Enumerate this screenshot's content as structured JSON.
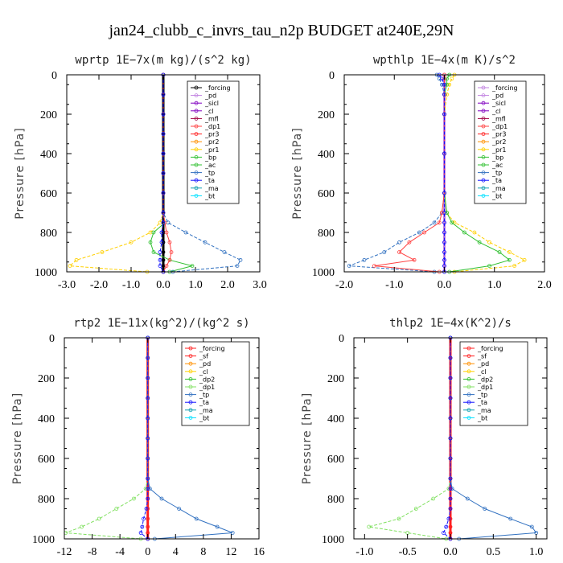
{
  "figure_title": "jan24_clubb_c_invrs_tau_n2p  BUDGET at240E,29N",
  "chart_data": [
    {
      "type": "line",
      "title": "wprtp   1E−7x(m kg)/(s^2 kg)",
      "ylabel": "Pressure [hPa]",
      "xlim": [
        -3.0,
        3.0
      ],
      "ylim": [
        1000,
        0
      ],
      "xticks": [
        -3.0,
        -2.0,
        -1.0,
        0.0,
        1.0,
        2.0,
        3.0
      ],
      "xtick_labels": [
        "-3.0",
        "-2.0",
        "-1.0",
        "0.0",
        "1.0",
        "2.0",
        "3.0"
      ],
      "yticks": [
        0,
        200,
        400,
        600,
        800,
        1000
      ],
      "ytick_labels": [
        "0",
        "200",
        "400",
        "600",
        "800",
        "1000"
      ],
      "legend_position": "top-right",
      "legend": [
        "_forcing",
        "_pd",
        "_sicl",
        "_cl",
        "_mfl",
        "_dp1",
        "_pr3",
        "_pr2",
        "_pr1",
        "_bp",
        "_ac",
        "_tp",
        "_ta",
        "_ma",
        "_bt"
      ],
      "colors": [
        "#000000",
        "#c080e0",
        "#8000c0",
        "#8000c0",
        "#a00040",
        "#ff4040",
        "#ff2020",
        "#ff9000",
        "#ffd000",
        "#30c030",
        "#30c030",
        "#3070c0",
        "#1010ff",
        "#10a0b0",
        "#00e0ff"
      ],
      "pressure": [
        0,
        100,
        200,
        300,
        400,
        500,
        600,
        700,
        750,
        800,
        850,
        900,
        940,
        970,
        1000
      ],
      "series": [
        {
          "name": "_forcing",
          "values": [
            0,
            0,
            0,
            0,
            0,
            0,
            0,
            0,
            0,
            0,
            0,
            0,
            0,
            0,
            0
          ]
        },
        {
          "name": "_pr1",
          "values": [
            0,
            0,
            0,
            0,
            0,
            0,
            0,
            0,
            -0.1,
            -0.4,
            -1.0,
            -1.9,
            -2.7,
            -2.9,
            -0.5
          ]
        },
        {
          "name": "_ac",
          "values": [
            0,
            0,
            0,
            0,
            0,
            0,
            0,
            0,
            0.05,
            -0.3,
            -0.4,
            -0.3,
            0.2,
            0.9,
            0.2
          ]
        },
        {
          "name": "_tp",
          "values": [
            0,
            0,
            0,
            0,
            0,
            0,
            0,
            0,
            0.15,
            0.7,
            1.3,
            1.9,
            2.4,
            2.3,
            0.3
          ]
        },
        {
          "name": "_dp1",
          "values": [
            0,
            0,
            0,
            0,
            0,
            0,
            0,
            0,
            0.05,
            0.1,
            0.2,
            0.25,
            0.2,
            0.1,
            0
          ]
        },
        {
          "name": "_ta",
          "values": [
            0,
            0,
            0,
            0,
            0,
            0,
            0,
            0,
            0,
            -0.05,
            -0.05,
            -0.1,
            -0.1,
            -0.1,
            0
          ]
        }
      ]
    },
    {
      "type": "line",
      "title": "wpthlp   1E−4x(m K)/s^2",
      "ylabel": "Pressure [hPa]",
      "xlim": [
        -2.0,
        2.0
      ],
      "ylim": [
        1000,
        0
      ],
      "xticks": [
        -2.0,
        -1.0,
        0.0,
        1.0,
        2.0
      ],
      "xtick_labels": [
        "-2.0",
        "-1.0",
        "0.0",
        "1.0",
        "2.0"
      ],
      "yticks": [
        0,
        200,
        400,
        600,
        800,
        1000
      ],
      "ytick_labels": [
        "0",
        "200",
        "400",
        "600",
        "800",
        "1000"
      ],
      "legend_position": "top-right",
      "legend": [
        "_forcing",
        "_pd",
        "_sicl",
        "_cl",
        "_mfl",
        "_dp1",
        "_pr3",
        "_pr2",
        "_pr1",
        "_bp",
        "_ac",
        "_tp",
        "_ta",
        "_ma",
        "_bt"
      ],
      "colors": [
        "#c080e0",
        "#c080e0",
        "#8000c0",
        "#8000c0",
        "#a00040",
        "#ff4040",
        "#ff2020",
        "#ff9000",
        "#ffd000",
        "#30c030",
        "#30c030",
        "#3070c0",
        "#1010ff",
        "#10a0b0",
        "#00e0ff"
      ],
      "pressure": [
        0,
        20,
        50,
        100,
        200,
        400,
        600,
        700,
        750,
        800,
        850,
        900,
        940,
        970,
        1000
      ],
      "series": [
        {
          "name": "_forcing",
          "values": [
            0,
            0,
            0,
            0,
            0,
            0,
            0,
            0,
            0,
            0,
            0,
            0,
            0,
            0,
            0
          ]
        },
        {
          "name": "_pr1",
          "values": [
            0.2,
            0.15,
            0.1,
            0.05,
            0,
            0,
            0,
            0.05,
            0.2,
            0.6,
            0.9,
            1.3,
            1.6,
            1.4,
            0.2
          ]
        },
        {
          "name": "_ac",
          "values": [
            0.1,
            0.05,
            0.05,
            0,
            0,
            0,
            0,
            0.05,
            0.15,
            0.4,
            0.7,
            1.1,
            1.3,
            0.9,
            0.1
          ]
        },
        {
          "name": "_tp",
          "values": [
            -0.15,
            -0.1,
            -0.05,
            0,
            0,
            0,
            0,
            -0.05,
            -0.2,
            -0.5,
            -0.9,
            -1.2,
            -1.6,
            -1.9,
            -0.2
          ]
        },
        {
          "name": "_dp1",
          "values": [
            0,
            0,
            0,
            0,
            0,
            0,
            0,
            -0.05,
            -0.1,
            -0.4,
            -0.7,
            -0.9,
            -0.6,
            -1.4,
            -0.1
          ]
        },
        {
          "name": "_ta",
          "values": [
            -0.1,
            -0.05,
            0,
            0,
            0,
            0,
            0,
            0,
            0,
            0,
            0,
            0,
            0,
            0,
            0
          ]
        }
      ]
    },
    {
      "type": "line",
      "title": "rtp2   1E−11x(kg^2)/(kg^2 s)",
      "ylabel": "Pressure [hPa]",
      "xlim": [
        -12,
        16
      ],
      "ylim": [
        1000,
        0
      ],
      "xticks": [
        -12,
        -8,
        -4,
        0,
        4,
        8,
        12,
        16
      ],
      "xtick_labels": [
        "-12",
        "-8",
        "-4",
        "0",
        "4",
        "8",
        "12",
        "16"
      ],
      "yticks": [
        0,
        200,
        400,
        600,
        800,
        1000
      ],
      "ytick_labels": [
        "0",
        "200",
        "400",
        "600",
        "800",
        "1000"
      ],
      "legend_position": "top-right",
      "legend": [
        "_forcing",
        "_sf",
        "_pd",
        "_cl",
        "_dp2",
        "_dp1",
        "_tp",
        "_ta",
        "_ma",
        "_bt"
      ],
      "colors": [
        "#ff2020",
        "#ff2020",
        "#ff9000",
        "#ffd000",
        "#30c030",
        "#80e060",
        "#3070c0",
        "#1010ff",
        "#10a0b0",
        "#00e0ff"
      ],
      "pressure": [
        0,
        100,
        200,
        300,
        400,
        500,
        600,
        700,
        750,
        800,
        850,
        900,
        940,
        970,
        1000
      ],
      "series": [
        {
          "name": "_forcing",
          "values": [
            0,
            0,
            0,
            0,
            0,
            0,
            0,
            0,
            0,
            0,
            0,
            0,
            0,
            0,
            0
          ]
        },
        {
          "name": "_dp1",
          "values": [
            0,
            0,
            0,
            0,
            0,
            0,
            0,
            0,
            -0.3,
            -2.0,
            -4.5,
            -7.0,
            -9.5,
            -11.8,
            -1.0
          ]
        },
        {
          "name": "_tp",
          "values": [
            0,
            0,
            0,
            0,
            0,
            0,
            0,
            0,
            0.3,
            2.0,
            4.5,
            7.0,
            10.0,
            12.2,
            1.0
          ]
        },
        {
          "name": "_ta",
          "values": [
            0,
            0,
            0,
            0,
            0,
            0,
            0,
            0,
            0,
            0,
            -0.2,
            -0.6,
            -0.8,
            -1.0,
            0
          ]
        }
      ]
    },
    {
      "type": "line",
      "title": "thlp2   1E−4x(K^2)/s",
      "ylabel": "Pressure [hPa]",
      "xlim": [
        -1.125,
        1.125
      ],
      "ylim": [
        1000,
        0
      ],
      "xticks": [
        -1.0,
        -0.5,
        0.0,
        0.5,
        1.0
      ],
      "xtick_labels": [
        "-1.0",
        "-0.5",
        "0.0",
        "0.5",
        "1.0"
      ],
      "yticks": [
        0,
        200,
        400,
        600,
        800,
        1000
      ],
      "ytick_labels": [
        "0",
        "200",
        "400",
        "600",
        "800",
        "1000"
      ],
      "legend_position": "top-right",
      "legend": [
        "_forcing",
        "_sf",
        "_pd",
        "_cl",
        "_dp2",
        "_dp1",
        "_tp",
        "_ta",
        "_ma",
        "_bt"
      ],
      "colors": [
        "#ff2020",
        "#ff2020",
        "#ff9000",
        "#ffd000",
        "#30c030",
        "#80e060",
        "#3070c0",
        "#1010ff",
        "#10a0b0",
        "#00e0ff"
      ],
      "pressure": [
        0,
        100,
        200,
        300,
        400,
        500,
        600,
        700,
        750,
        800,
        850,
        900,
        940,
        970,
        1000
      ],
      "series": [
        {
          "name": "_forcing",
          "values": [
            0,
            0,
            0,
            0,
            0,
            0,
            0,
            0,
            0,
            0,
            0,
            0,
            0,
            0,
            0
          ]
        },
        {
          "name": "_dp1",
          "values": [
            0,
            0,
            0,
            0,
            0,
            0,
            0,
            0,
            -0.02,
            -0.2,
            -0.4,
            -0.6,
            -0.95,
            -0.5,
            -0.05
          ]
        },
        {
          "name": "_tp",
          "values": [
            0,
            0,
            0,
            0,
            0,
            0,
            0,
            0,
            0.02,
            0.2,
            0.4,
            0.7,
            0.95,
            1.0,
            0.1
          ]
        },
        {
          "name": "_ta",
          "values": [
            0,
            0,
            0,
            0,
            0,
            0,
            0,
            0,
            0,
            0,
            0,
            -0.02,
            -0.05,
            -0.08,
            0
          ]
        }
      ]
    }
  ]
}
